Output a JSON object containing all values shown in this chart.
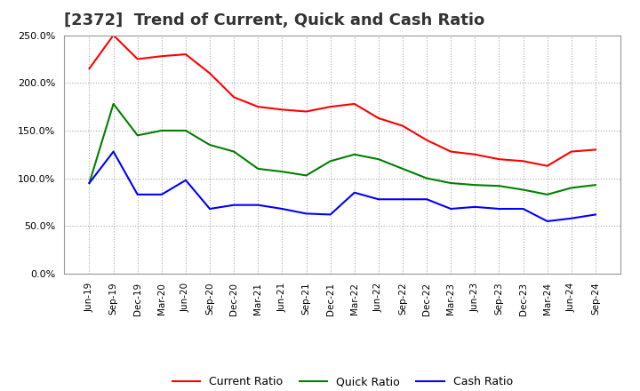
{
  "title": "[2372]  Trend of Current, Quick and Cash Ratio",
  "x_labels": [
    "Jun-19",
    "Sep-19",
    "Dec-19",
    "Mar-20",
    "Jun-20",
    "Sep-20",
    "Dec-20",
    "Mar-21",
    "Jun-21",
    "Sep-21",
    "Dec-21",
    "Mar-22",
    "Jun-22",
    "Sep-22",
    "Dec-22",
    "Mar-23",
    "Jun-23",
    "Sep-23",
    "Dec-23",
    "Mar-24",
    "Jun-24",
    "Sep-24"
  ],
  "current_ratio": [
    215,
    250,
    225,
    228,
    230,
    210,
    185,
    175,
    172,
    170,
    175,
    178,
    163,
    155,
    140,
    128,
    125,
    120,
    118,
    113,
    128,
    130
  ],
  "quick_ratio": [
    95,
    178,
    145,
    150,
    150,
    135,
    128,
    110,
    107,
    103,
    118,
    125,
    120,
    110,
    100,
    95,
    93,
    92,
    88,
    83,
    90,
    93
  ],
  "cash_ratio": [
    95,
    128,
    83,
    83,
    98,
    68,
    72,
    72,
    68,
    63,
    62,
    85,
    78,
    78,
    78,
    68,
    70,
    68,
    68,
    55,
    58,
    62
  ],
  "colors": {
    "current": "#ff0000",
    "quick": "#008000",
    "cash": "#0000ff"
  },
  "ylim": [
    0,
    250
  ],
  "yticks": [
    0,
    50,
    100,
    150,
    200,
    250
  ],
  "background_color": "#ffffff",
  "grid_color": "#aaaaaa",
  "title_fontsize": 13,
  "legend_labels": [
    "Current Ratio",
    "Quick Ratio",
    "Cash Ratio"
  ]
}
